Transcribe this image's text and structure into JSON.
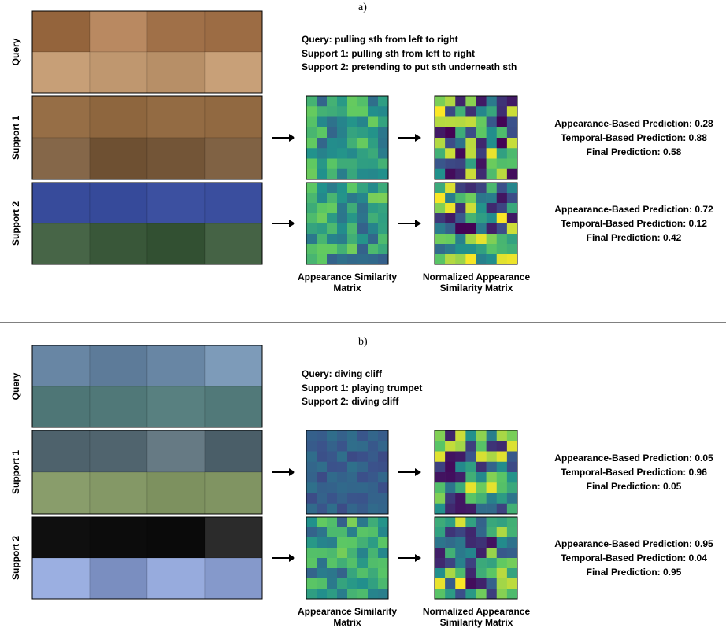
{
  "panels": [
    {
      "label": "a)",
      "classes": [
        "Query: pulling sth from left to right",
        "Support 1: pulling sth from left to right",
        "Support 2: pretending to put sth underneath sth"
      ],
      "rows": [
        {
          "label": "Query"
        },
        {
          "label": "Support 1",
          "predictions": [
            "Appearance-Based Prediction: 0.28",
            "Temporal-Based Prediction: 0.88",
            "Final Prediction: 0.58"
          ]
        },
        {
          "label": "Support 2",
          "predictions": [
            "Appearance-Based Prediction: 0.72",
            "Temporal-Based Prediction: 0.12",
            "Final Prediction: 0.42"
          ]
        }
      ],
      "matrix_captions": [
        "Appearance Similarity Matrix",
        "Normalized Appearance Similarity Matrix"
      ]
    },
    {
      "label": "b)",
      "classes": [
        "Query: diving cliff",
        "Support 1: playing trumpet",
        "Support 2: diving cliff"
      ],
      "rows": [
        {
          "label": "Query"
        },
        {
          "label": "Support 1",
          "predictions": [
            "Appearance-Based Prediction: 0.05",
            "Temporal-Based Prediction: 0.96",
            "Final Prediction: 0.05"
          ]
        },
        {
          "label": "Support 2",
          "predictions": [
            "Appearance-Based Prediction: 0.95",
            "Temporal-Based Prediction: 0.04",
            "Final Prediction: 0.95"
          ]
        }
      ],
      "matrix_captions": [
        "Appearance Similarity Matrix",
        "Normalized Appearance Similarity Matrix"
      ]
    }
  ]
}
